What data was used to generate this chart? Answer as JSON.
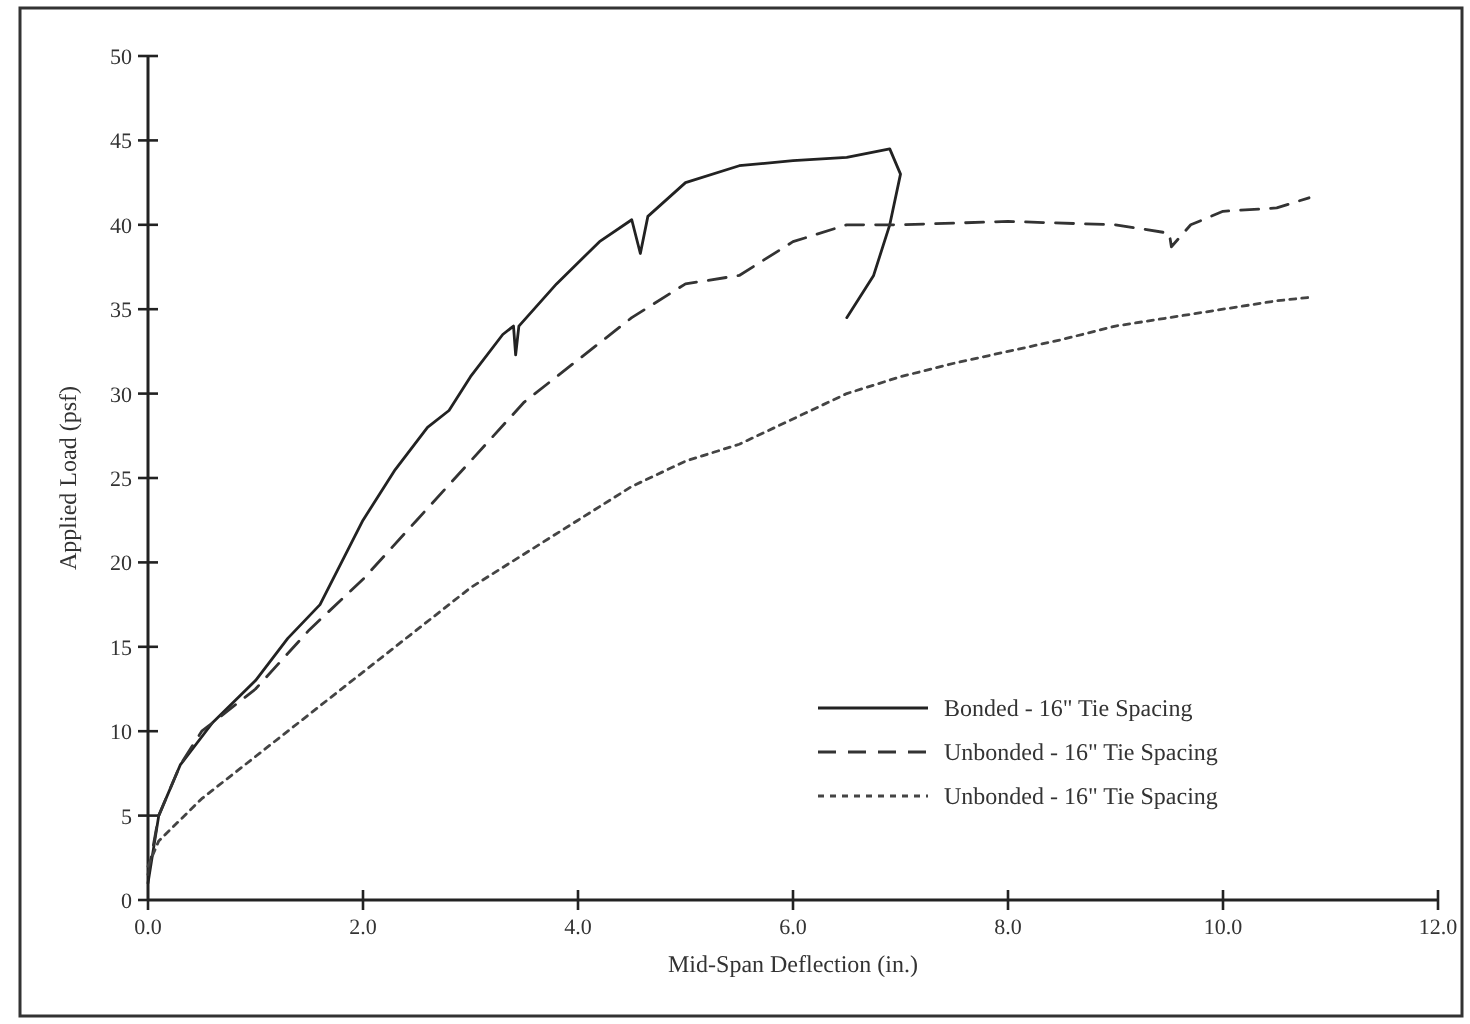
{
  "chart_data": {
    "type": "line",
    "xlabel": "Mid-Span Deflection (in.)",
    "ylabel": "Applied Load (psf)",
    "xlim": [
      0,
      12
    ],
    "ylim": [
      0,
      50
    ],
    "xticks": [
      {
        "value": 0,
        "label": "0.0"
      },
      {
        "value": 2,
        "label": "2.0"
      },
      {
        "value": 4,
        "label": "4.0"
      },
      {
        "value": 6,
        "label": "6.0"
      },
      {
        "value": 8,
        "label": "8.0"
      },
      {
        "value": 10,
        "label": "10.0"
      },
      {
        "value": 12,
        "label": "12.0"
      }
    ],
    "yticks": [
      0,
      5,
      10,
      15,
      20,
      25,
      30,
      35,
      40,
      45,
      50
    ],
    "grid": false,
    "legend": "bottom right",
    "marker": "none",
    "series": [
      {
        "name": "Bonded - 16\" Tie Spacing",
        "color": "#222222",
        "line_style": "solid",
        "x": [
          0,
          0.05,
          0.1,
          0.3,
          0.6,
          1.0,
          1.3,
          1.6,
          1.8,
          2.0,
          2.3,
          2.6,
          2.8,
          3.0,
          3.3,
          3.4,
          3.42,
          3.45,
          3.8,
          4.2,
          4.5,
          4.58,
          4.65,
          5.0,
          5.5,
          6.0,
          6.5,
          6.9,
          7.0,
          6.9,
          6.75,
          6.5
        ],
        "values": [
          1,
          3,
          5,
          8,
          10.5,
          13,
          15.5,
          17.5,
          20,
          22.5,
          25.5,
          28,
          29,
          31,
          33.5,
          34,
          32.3,
          34,
          36.5,
          39,
          40.3,
          38.3,
          40.5,
          42.5,
          43.5,
          43.8,
          44,
          44.5,
          43,
          40,
          37,
          34.5
        ]
      },
      {
        "name": "Unbonded - 16\" Tie Spacing",
        "color": "#333333",
        "line_style": "dashed",
        "x": [
          0,
          0.1,
          0.3,
          0.5,
          1.0,
          1.5,
          2.0,
          2.5,
          3.0,
          3.5,
          4.0,
          4.5,
          5.0,
          5.5,
          6.0,
          6.5,
          7.0,
          8.0,
          9.0,
          9.5,
          9.52,
          9.7,
          10.0,
          10.5,
          10.8
        ],
        "values": [
          1.5,
          5,
          8,
          10,
          12.5,
          16,
          19,
          22.5,
          26,
          29.5,
          32,
          34.5,
          36.5,
          37,
          39,
          40,
          40,
          40.2,
          40,
          39.5,
          38.7,
          40,
          40.8,
          41,
          41.6
        ]
      },
      {
        "name": "Unbonded - 16\" Tie Spacing",
        "color": "#444444",
        "line_style": "dotted",
        "x": [
          0,
          0.1,
          0.5,
          1.0,
          1.5,
          2.0,
          2.5,
          3.0,
          3.5,
          4.0,
          4.5,
          5.0,
          5.5,
          6.0,
          6.5,
          7.0,
          7.5,
          8.0,
          8.5,
          9.0,
          9.5,
          10.0,
          10.5,
          10.8
        ],
        "values": [
          2,
          3.5,
          6,
          8.5,
          11,
          13.5,
          16,
          18.5,
          20.5,
          22.5,
          24.5,
          26,
          27,
          28.5,
          30,
          31,
          31.8,
          32.5,
          33.2,
          34,
          34.5,
          35,
          35.5,
          35.7
        ]
      }
    ]
  }
}
